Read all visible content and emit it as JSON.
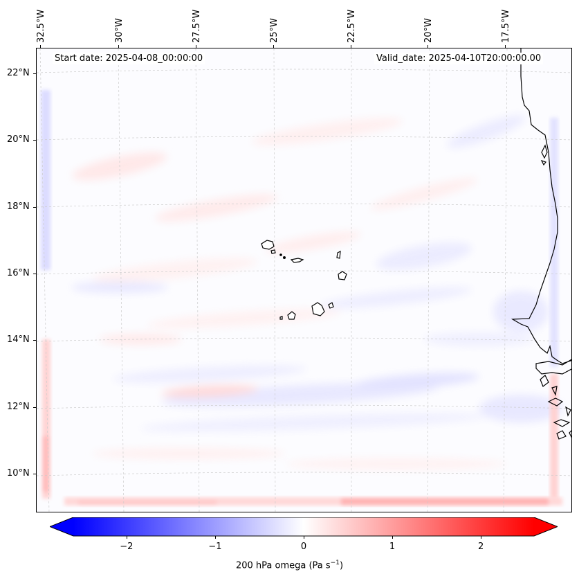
{
  "header": {
    "start_date": "Start date: 2025-04-08_00:00:00",
    "valid_date": "Valid_date: 2025-04-10T20:00:00.00"
  },
  "longitude_labels": [
    "32.5°W",
    "30°W",
    "27.5°W",
    "25°W",
    "22.5°W",
    "20°W",
    "17.5°W"
  ],
  "latitude_labels": [
    "22°N",
    "20°N",
    "18°N",
    "16°N",
    "14°N",
    "12°N",
    "10°N"
  ],
  "colorbar": {
    "ticks": [
      "−2",
      "−1",
      "0",
      "1",
      "2"
    ],
    "label": "200 hPa omega (Pa s",
    "label_exp": "−1",
    "label_close": ")",
    "min": -2.6,
    "max": 2.6,
    "low_color": "#0000ff",
    "mid_color": "#ffffff",
    "high_color": "#ff0000"
  },
  "map": {
    "field": "200 hPa omega",
    "region": "Cabo Verde / West Africa coast",
    "coastline_color": "#000000",
    "gridline_color": "#cccccc"
  }
}
